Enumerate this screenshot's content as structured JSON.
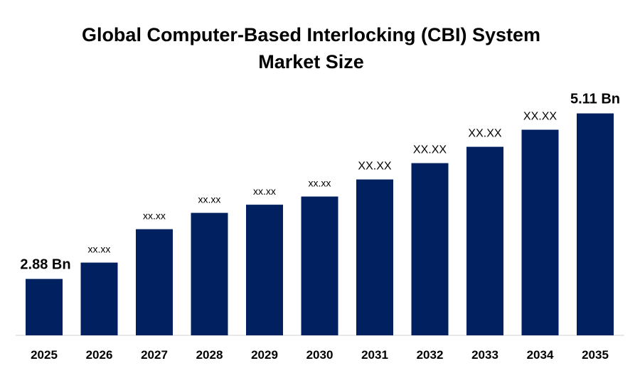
{
  "chart_data": {
    "type": "bar",
    "title_line1": "Global Computer-Based Interlocking (CBI) System",
    "title_line2": "Market Size",
    "categories": [
      "2025",
      "2026",
      "2027",
      "2028",
      "2029",
      "2030",
      "2031",
      "2032",
      "2033",
      "2034",
      "2035"
    ],
    "values": [
      2.88,
      3.1,
      3.55,
      3.77,
      3.88,
      3.99,
      4.22,
      4.44,
      4.66,
      4.89,
      5.11
    ],
    "data_labels": [
      "2.88  Bn",
      "xx.xx",
      "xx.xx",
      "xx.xx",
      "xx.xx",
      "xx.xx",
      "XX.XX",
      "XX.XX",
      "XX.XX",
      "XX.XX",
      "5.11 Bn"
    ],
    "xlabel": "",
    "ylabel": "",
    "grid": false,
    "legend": "none",
    "bar_color": "#002060"
  }
}
